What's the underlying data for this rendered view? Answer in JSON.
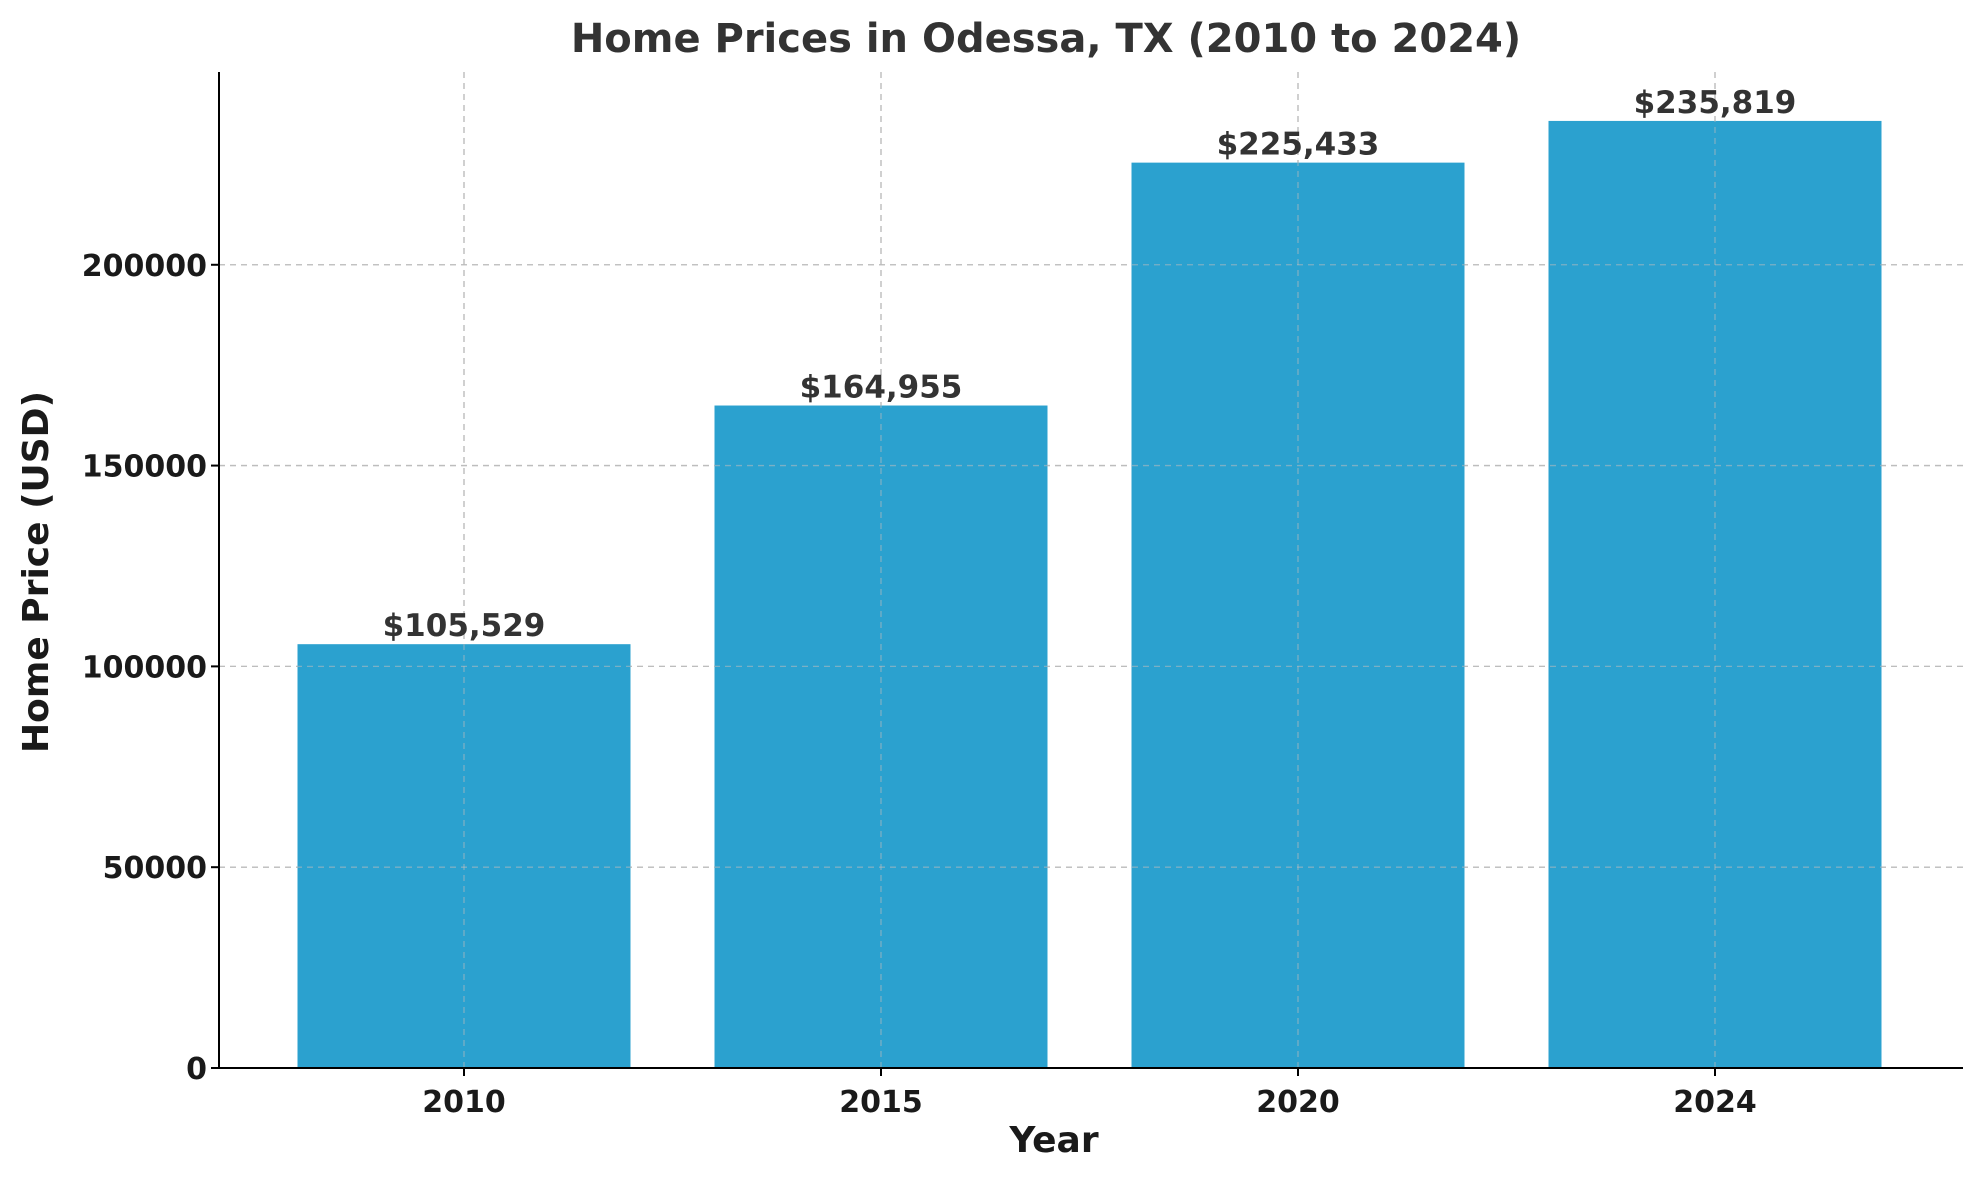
{
  "chart_data": {
    "type": "bar",
    "title": "Home Prices in Odessa, TX (2010 to 2024)",
    "xlabel": "Year",
    "ylabel": "Home Price (USD)",
    "categories": [
      "2010",
      "2015",
      "2020",
      "2024"
    ],
    "values": [
      105529,
      164955,
      225433,
      235819
    ],
    "value_labels": [
      "$105,529",
      "$164,955",
      "$225,433",
      "$235,819"
    ],
    "yticks": [
      0,
      50000,
      100000,
      150000,
      200000
    ],
    "ytick_labels": [
      "0",
      "50000",
      "100000",
      "150000",
      "200000"
    ],
    "ylim": [
      0,
      248000
    ],
    "grid": true,
    "bar_color": "#2ba1cf"
  }
}
